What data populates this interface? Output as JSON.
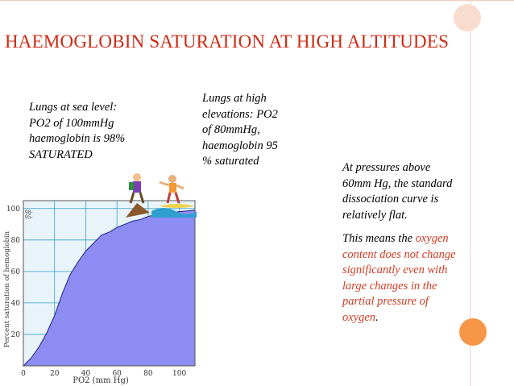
{
  "slide": {
    "title": "HAEMOGLOBIN SATURATION AT HIGH ALTITUDES",
    "colors": {
      "title": "#cc2b14",
      "accent_red": "#d23b22",
      "orange_circle": "#f79646",
      "curve_fill": "#8c8cf2",
      "grid": "#3aa0c8"
    }
  },
  "notes": {
    "sea_level": "Lungs at sea level:\nPO2 of 100mmHg\nhaemoglobin is 98%\nSATURATED",
    "high_elevation": "Lungs at high\nelevations: PO2\nof 80mmHg,\nhaemoglobin 95\n% saturated",
    "pressures": "At pressures above\n60mm Hg, the standard\ndissociation curve is\nrelatively flat.",
    "means_lead": "This means the ",
    "means_red": "oxygen\ncontent does not change\nsignificantly even with\nlarge changes in the\npartial pressure of\noxygen",
    "means_end": "."
  },
  "chart_data": {
    "type": "area",
    "xlabel": "PO2 (mm Hg)",
    "ylabel": "Percent saturation of hemoglobin",
    "xlim": [
      0,
      110
    ],
    "ylim": [
      0,
      105
    ],
    "x_ticks": [
      "0",
      "20",
      "40",
      "60",
      "80",
      "100"
    ],
    "y_ticks": [
      "20",
      "40",
      "60",
      "80",
      "100"
    ],
    "marker_labels": [
      "98-",
      "95-"
    ],
    "series": [
      {
        "x": [
          0,
          5,
          10,
          15,
          20,
          25,
          30,
          35,
          40,
          45,
          50,
          55,
          60,
          65,
          70,
          75,
          80,
          85,
          90,
          95,
          100,
          105,
          110
        ],
        "y": [
          0,
          5,
          12,
          21,
          32,
          46,
          58,
          66,
          73,
          78,
          83,
          85,
          88,
          90,
          92,
          93,
          95,
          96,
          97,
          97.5,
          98,
          98.5,
          99
        ]
      }
    ],
    "grid": true
  }
}
